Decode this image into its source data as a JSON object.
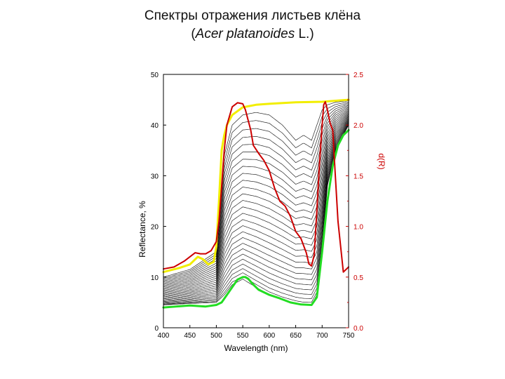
{
  "title": {
    "line1": "Спектры отражения листьев клёна",
    "line2_open": "(",
    "line2_italic": "Acer platanoides",
    "line2_rest": " L.)"
  },
  "chart_data": {
    "type": "line",
    "title": "Спектры отражения листьев клёна (Acer platanoides L.)",
    "xlabel": "Wavelength (nm)",
    "ylabel": "Reflectance, %",
    "y2label": "d(R)",
    "xlim": [
      400,
      750
    ],
    "ylim": [
      0,
      50
    ],
    "y2lim": [
      0,
      2.5
    ],
    "x_ticks": [
      "400",
      "450",
      "500",
      "550",
      "600",
      "650",
      "700",
      "750"
    ],
    "y_ticks": [
      "0",
      "10",
      "20",
      "30",
      "40",
      "50"
    ],
    "y2_ticks": [
      "0.0",
      "0.5",
      "1.0",
      "1.5",
      "2.0",
      "2.5"
    ],
    "colors": {
      "yellow": "#f2ee00",
      "green": "#22dd22",
      "red": "#cc0000",
      "family": "#000000"
    },
    "series": [
      {
        "color": "yellow",
        "axis": "left",
        "x": [
          400,
          430,
          450,
          465,
          475,
          485,
          495,
          500,
          505,
          510,
          515,
          520,
          530,
          550,
          575,
          600,
          650,
          700,
          750
        ],
        "y": [
          11,
          11.8,
          12.5,
          14,
          13.5,
          12.5,
          13,
          16,
          25,
          35,
          38,
          40,
          42,
          43.5,
          44,
          44.2,
          44.5,
          44.6,
          45
        ]
      },
      {
        "color": "green",
        "axis": "left",
        "x": [
          400,
          450,
          480,
          500,
          510,
          520,
          530,
          540,
          550,
          555,
          560,
          570,
          580,
          600,
          620,
          640,
          660,
          680,
          690,
          700,
          710,
          720,
          730,
          740,
          750
        ],
        "y": [
          4,
          4.4,
          4.2,
          4.5,
          5,
          6.5,
          8,
          9.5,
          10,
          10,
          9.7,
          8.5,
          7.5,
          6.5,
          5.8,
          5,
          4.6,
          4.5,
          6,
          15,
          25,
          32,
          36,
          38,
          39
        ]
      },
      {
        "color": "red",
        "axis": "right",
        "x": [
          400,
          420,
          440,
          460,
          470,
          480,
          490,
          500,
          505,
          510,
          515,
          520,
          530,
          540,
          550,
          555,
          560,
          565,
          570,
          580,
          590,
          600,
          610,
          620,
          630,
          640,
          650,
          660,
          670,
          675,
          680,
          685,
          690,
          695,
          700,
          703,
          706,
          710,
          715,
          720,
          725,
          730,
          740,
          750
        ],
        "y": [
          0.58,
          0.6,
          0.66,
          0.74,
          0.73,
          0.73,
          0.76,
          0.85,
          1.05,
          1.4,
          1.75,
          2.0,
          2.18,
          2.22,
          2.21,
          2.15,
          2.05,
          1.95,
          1.8,
          1.72,
          1.65,
          1.55,
          1.38,
          1.25,
          1.2,
          1.1,
          0.95,
          0.88,
          0.74,
          0.63,
          0.61,
          0.72,
          1.15,
          1.62,
          2.0,
          2.2,
          2.23,
          2.15,
          2.02,
          1.95,
          1.5,
          1.05,
          0.55,
          0.6
        ]
      }
    ],
    "family": {
      "color": "family",
      "count": 28,
      "x": [
        400,
        450,
        500,
        515,
        530,
        550,
        575,
        600,
        625,
        650,
        665,
        680,
        690,
        700,
        710,
        725,
        750
      ],
      "upper": [
        10,
        11.5,
        15,
        34,
        40,
        42,
        42.5,
        42,
        40,
        37,
        38,
        37,
        40,
        43,
        44,
        44.5,
        44.8
      ],
      "lower": [
        4.5,
        4.8,
        5,
        6.5,
        8.5,
        9.6,
        8,
        6.5,
        5.5,
        4.8,
        4.5,
        4.5,
        6.5,
        16,
        28,
        35,
        40
      ]
    }
  }
}
